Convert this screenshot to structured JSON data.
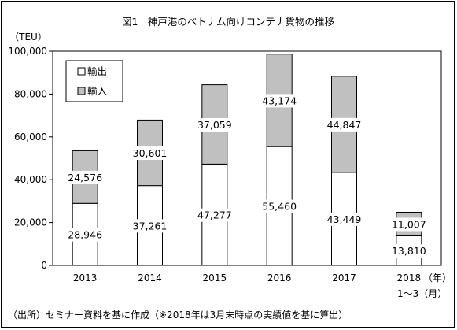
{
  "chart_data": {
    "type": "bar",
    "stacked": true,
    "title": "図1　神戸港のベトナム向けコンテナ貨物の推移",
    "ylabel": "（TEU）",
    "categories": [
      "2013",
      "2014",
      "2015",
      "2016",
      "2017",
      "2018"
    ],
    "xlabel_last_suffix": "（年）",
    "xlabel_last_sub": "1～3（月）",
    "ylim": [
      0,
      100000
    ],
    "yticks": [
      "0",
      "20,000",
      "40,000",
      "60,000",
      "80,000",
      "100,000"
    ],
    "series": [
      {
        "name": "輸出",
        "values": [
          28946,
          37261,
          47277,
          55460,
          43449,
          13810
        ],
        "labels": [
          "28,946",
          "37,261",
          "47,277",
          "55,460",
          "43,449",
          "13,810"
        ],
        "color": "#ffffff"
      },
      {
        "name": "輸入",
        "values": [
          24576,
          30601,
          37059,
          43174,
          44847,
          11007
        ],
        "labels": [
          "24,576",
          "30,601",
          "37,059",
          "43,174",
          "44,847",
          "11,007"
        ],
        "color": "#c0c0c0"
      }
    ],
    "legend": "top-left",
    "source": "（出所）セミナー資料を基に作成（※2018年は3月末時点の実績値を基に算出）"
  }
}
